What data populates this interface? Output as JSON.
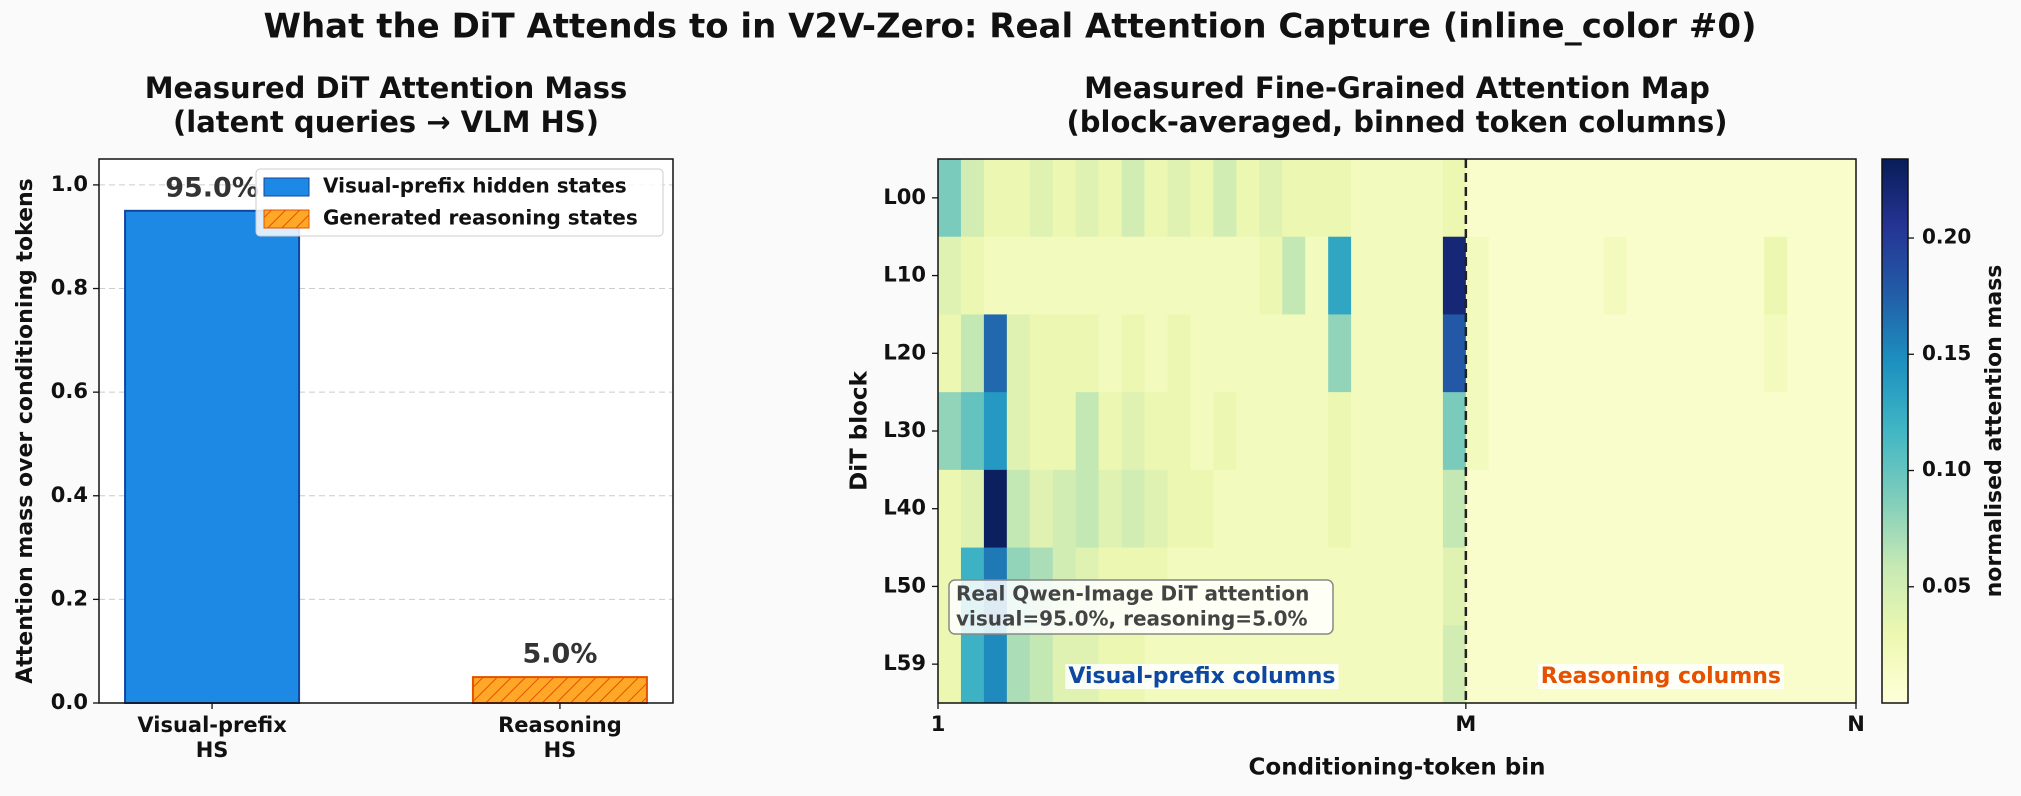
{
  "title": "What the DiT Attends to in V2V-Zero: Real Attention Capture (inline_color #0)",
  "chart_data": [
    {
      "type": "bar",
      "title": [
        "Measured DiT Attention Mass",
        "(latent queries → VLM HS)"
      ],
      "categories": [
        [
          "Visual-prefix",
          "HS"
        ],
        [
          "Reasoning",
          "HS"
        ]
      ],
      "values": [
        0.95,
        0.05
      ],
      "value_labels": [
        "95.0%",
        "5.0%"
      ],
      "colors": [
        "#1e88e5",
        "#ffa726"
      ],
      "edgecolors": [
        "#0d47a1",
        "#e65100"
      ],
      "hatch": [
        false,
        true
      ],
      "legend_labels": [
        "Visual-prefix hidden states",
        "Generated reasoning states"
      ],
      "legend": "upper right",
      "ylabel": "Attention mass over conditioning tokens",
      "ylim": [
        0,
        1.05
      ],
      "yticks": [
        {
          "value": 0,
          "label": "0.0"
        },
        0.2,
        0.4,
        0.6,
        0.8,
        {
          "value": 1,
          "label": "1.0"
        }
      ],
      "grid": true
    },
    {
      "type": "heatmap",
      "title": [
        "Measured Fine-Grained Attention Map",
        "(block-averaged, binned token columns)"
      ],
      "rows": [
        "L00",
        "L10",
        "L20",
        "L30",
        "L40",
        "L50",
        "L59"
      ],
      "xlim": [
        0,
        40
      ],
      "xticks": [
        {
          "value": 0,
          "label": "1"
        },
        {
          "value": 23,
          "label": "M"
        },
        {
          "value": 40,
          "label": "N"
        }
      ],
      "xlabel": "Conditioning-token bin",
      "ylabel": "DiT block",
      "colormap": "YlGnBu",
      "clim": [
        0,
        0.234
      ],
      "colorbar_ticks": [
        0.05,
        {
          "value": 0.1,
          "label": "0.10"
        },
        0.15,
        {
          "value": 0.2,
          "label": "0.20"
        }
      ],
      "colorbar_label": "normalised attention mass",
      "annotation": [
        "Real Qwen-Image DiT attention",
        "visual=95.0%, reasoning=5.0%"
      ],
      "region_labels": [
        {
          "text": "Visual-prefix columns",
          "color": "#0d47a1"
        },
        {
          "text": "Reasoning columns",
          "color": "#e65100"
        }
      ],
      "values": [
        [
          0.09,
          0.05,
          0.03,
          0.03,
          0.04,
          0.03,
          0.04,
          0.03,
          0.05,
          0.03,
          0.04,
          0.03,
          0.05,
          0.03,
          0.04,
          0.03,
          0.03,
          0.03,
          0.02,
          0.02,
          0.02,
          0.02,
          0.03,
          0.01,
          0.01,
          0.01,
          0.01,
          0.01,
          0.01,
          0.01,
          0.01,
          0.01,
          0.01,
          0.01,
          0.01,
          0.01,
          0.01,
          0.01,
          0.01,
          0.01
        ],
        [
          0.04,
          0.03,
          0.02,
          0.02,
          0.02,
          0.02,
          0.02,
          0.02,
          0.02,
          0.02,
          0.02,
          0.02,
          0.02,
          0.02,
          0.03,
          0.06,
          0.02,
          0.13,
          0.02,
          0.02,
          0.02,
          0.02,
          0.22,
          0.02,
          0.01,
          0.01,
          0.01,
          0.01,
          0.01,
          0.02,
          0.01,
          0.01,
          0.01,
          0.01,
          0.01,
          0.01,
          0.03,
          0.01,
          0.01,
          0.01
        ],
        [
          0.03,
          0.06,
          0.17,
          0.04,
          0.03,
          0.03,
          0.03,
          0.02,
          0.03,
          0.02,
          0.03,
          0.02,
          0.02,
          0.02,
          0.02,
          0.02,
          0.02,
          0.08,
          0.02,
          0.02,
          0.02,
          0.02,
          0.18,
          0.02,
          0.01,
          0.01,
          0.01,
          0.01,
          0.01,
          0.01,
          0.01,
          0.01,
          0.01,
          0.01,
          0.01,
          0.01,
          0.02,
          0.01,
          0.01,
          0.01
        ],
        [
          0.08,
          0.1,
          0.14,
          0.04,
          0.03,
          0.03,
          0.06,
          0.03,
          0.04,
          0.03,
          0.03,
          0.02,
          0.03,
          0.02,
          0.02,
          0.02,
          0.02,
          0.03,
          0.02,
          0.02,
          0.02,
          0.02,
          0.09,
          0.02,
          0.01,
          0.01,
          0.01,
          0.01,
          0.01,
          0.01,
          0.01,
          0.01,
          0.01,
          0.01,
          0.01,
          0.01,
          0.01,
          0.01,
          0.01,
          0.01
        ],
        [
          0.03,
          0.04,
          0.23,
          0.06,
          0.04,
          0.05,
          0.06,
          0.04,
          0.05,
          0.04,
          0.03,
          0.03,
          0.02,
          0.02,
          0.02,
          0.02,
          0.02,
          0.03,
          0.02,
          0.02,
          0.02,
          0.02,
          0.06,
          0.01,
          0.01,
          0.01,
          0.01,
          0.01,
          0.01,
          0.01,
          0.01,
          0.01,
          0.01,
          0.01,
          0.01,
          0.01,
          0.01,
          0.01,
          0.01,
          0.01
        ],
        [
          0.03,
          0.12,
          0.16,
          0.08,
          0.07,
          0.05,
          0.04,
          0.03,
          0.03,
          0.03,
          0.02,
          0.02,
          0.02,
          0.02,
          0.02,
          0.02,
          0.02,
          0.02,
          0.02,
          0.02,
          0.02,
          0.02,
          0.04,
          0.01,
          0.01,
          0.01,
          0.01,
          0.01,
          0.01,
          0.01,
          0.01,
          0.01,
          0.01,
          0.01,
          0.01,
          0.01,
          0.01,
          0.01,
          0.01,
          0.01
        ],
        [
          0.03,
          0.12,
          0.15,
          0.07,
          0.06,
          0.04,
          0.04,
          0.03,
          0.03,
          0.02,
          0.02,
          0.02,
          0.02,
          0.02,
          0.02,
          0.02,
          0.02,
          0.02,
          0.02,
          0.02,
          0.02,
          0.02,
          0.05,
          0.01,
          0.01,
          0.01,
          0.01,
          0.01,
          0.01,
          0.01,
          0.01,
          0.01,
          0.01,
          0.01,
          0.01,
          0.01,
          0.01,
          0.01,
          0.01,
          0.01
        ]
      ]
    }
  ]
}
